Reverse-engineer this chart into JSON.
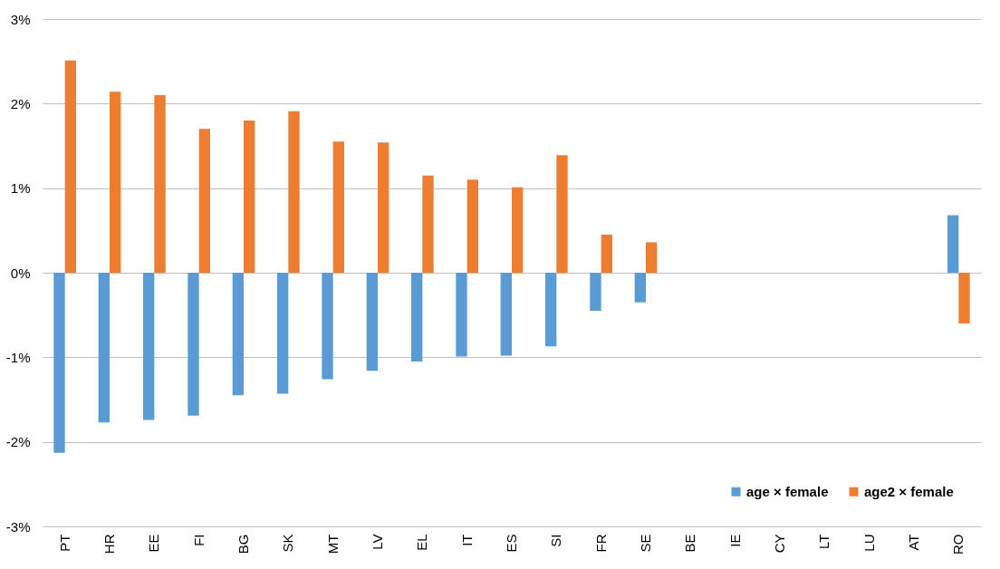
{
  "chart_data": {
    "type": "bar",
    "categories": [
      "PT",
      "HR",
      "EE",
      "FI",
      "BG",
      "SK",
      "MT",
      "LV",
      "EL",
      "IT",
      "ES",
      "SI",
      "FR",
      "SE",
      "BE",
      "IE",
      "CY",
      "LT",
      "LU",
      "AT",
      "RO"
    ],
    "series": [
      {
        "name": "age × female",
        "color": "#5b9bd5",
        "values": [
          -2.13,
          -1.77,
          -1.74,
          -1.69,
          -1.45,
          -1.43,
          -1.26,
          -1.16,
          -1.05,
          -0.99,
          -0.98,
          -0.87,
          -0.45,
          -0.35,
          null,
          null,
          null,
          null,
          null,
          null,
          0.68
        ]
      },
      {
        "name": "age2 × female",
        "color": "#ed7d31",
        "values": [
          2.51,
          2.14,
          2.1,
          1.7,
          1.8,
          1.91,
          1.55,
          1.54,
          1.15,
          1.1,
          1.01,
          1.39,
          0.45,
          0.36,
          null,
          null,
          null,
          null,
          null,
          null,
          -0.6
        ]
      }
    ],
    "ylim": [
      -3,
      3
    ],
    "yticks": [
      {
        "value": -3,
        "label": "-3%"
      },
      {
        "value": -2,
        "label": "-2%"
      },
      {
        "value": -1,
        "label": "-1%"
      },
      {
        "value": 0,
        "label": "0%"
      },
      {
        "value": 1,
        "label": "1%"
      },
      {
        "value": 2,
        "label": "2%"
      },
      {
        "value": 3,
        "label": "3%"
      }
    ],
    "grid": "y",
    "legend": "bottom right"
  }
}
